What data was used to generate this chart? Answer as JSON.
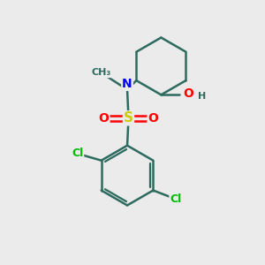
{
  "background_color": "#ebebeb",
  "atom_colors": {
    "C": "#2d6b5e",
    "N": "#0000ff",
    "O": "#ff0000",
    "S": "#cccc00",
    "Cl": "#00bb00",
    "H": "#2d6b5e"
  },
  "bond_color": "#2d6b5e",
  "bond_width": 1.8,
  "figsize": [
    3.0,
    3.0
  ],
  "dpi": 100,
  "xlim": [
    0,
    10
  ],
  "ylim": [
    0,
    10
  ]
}
